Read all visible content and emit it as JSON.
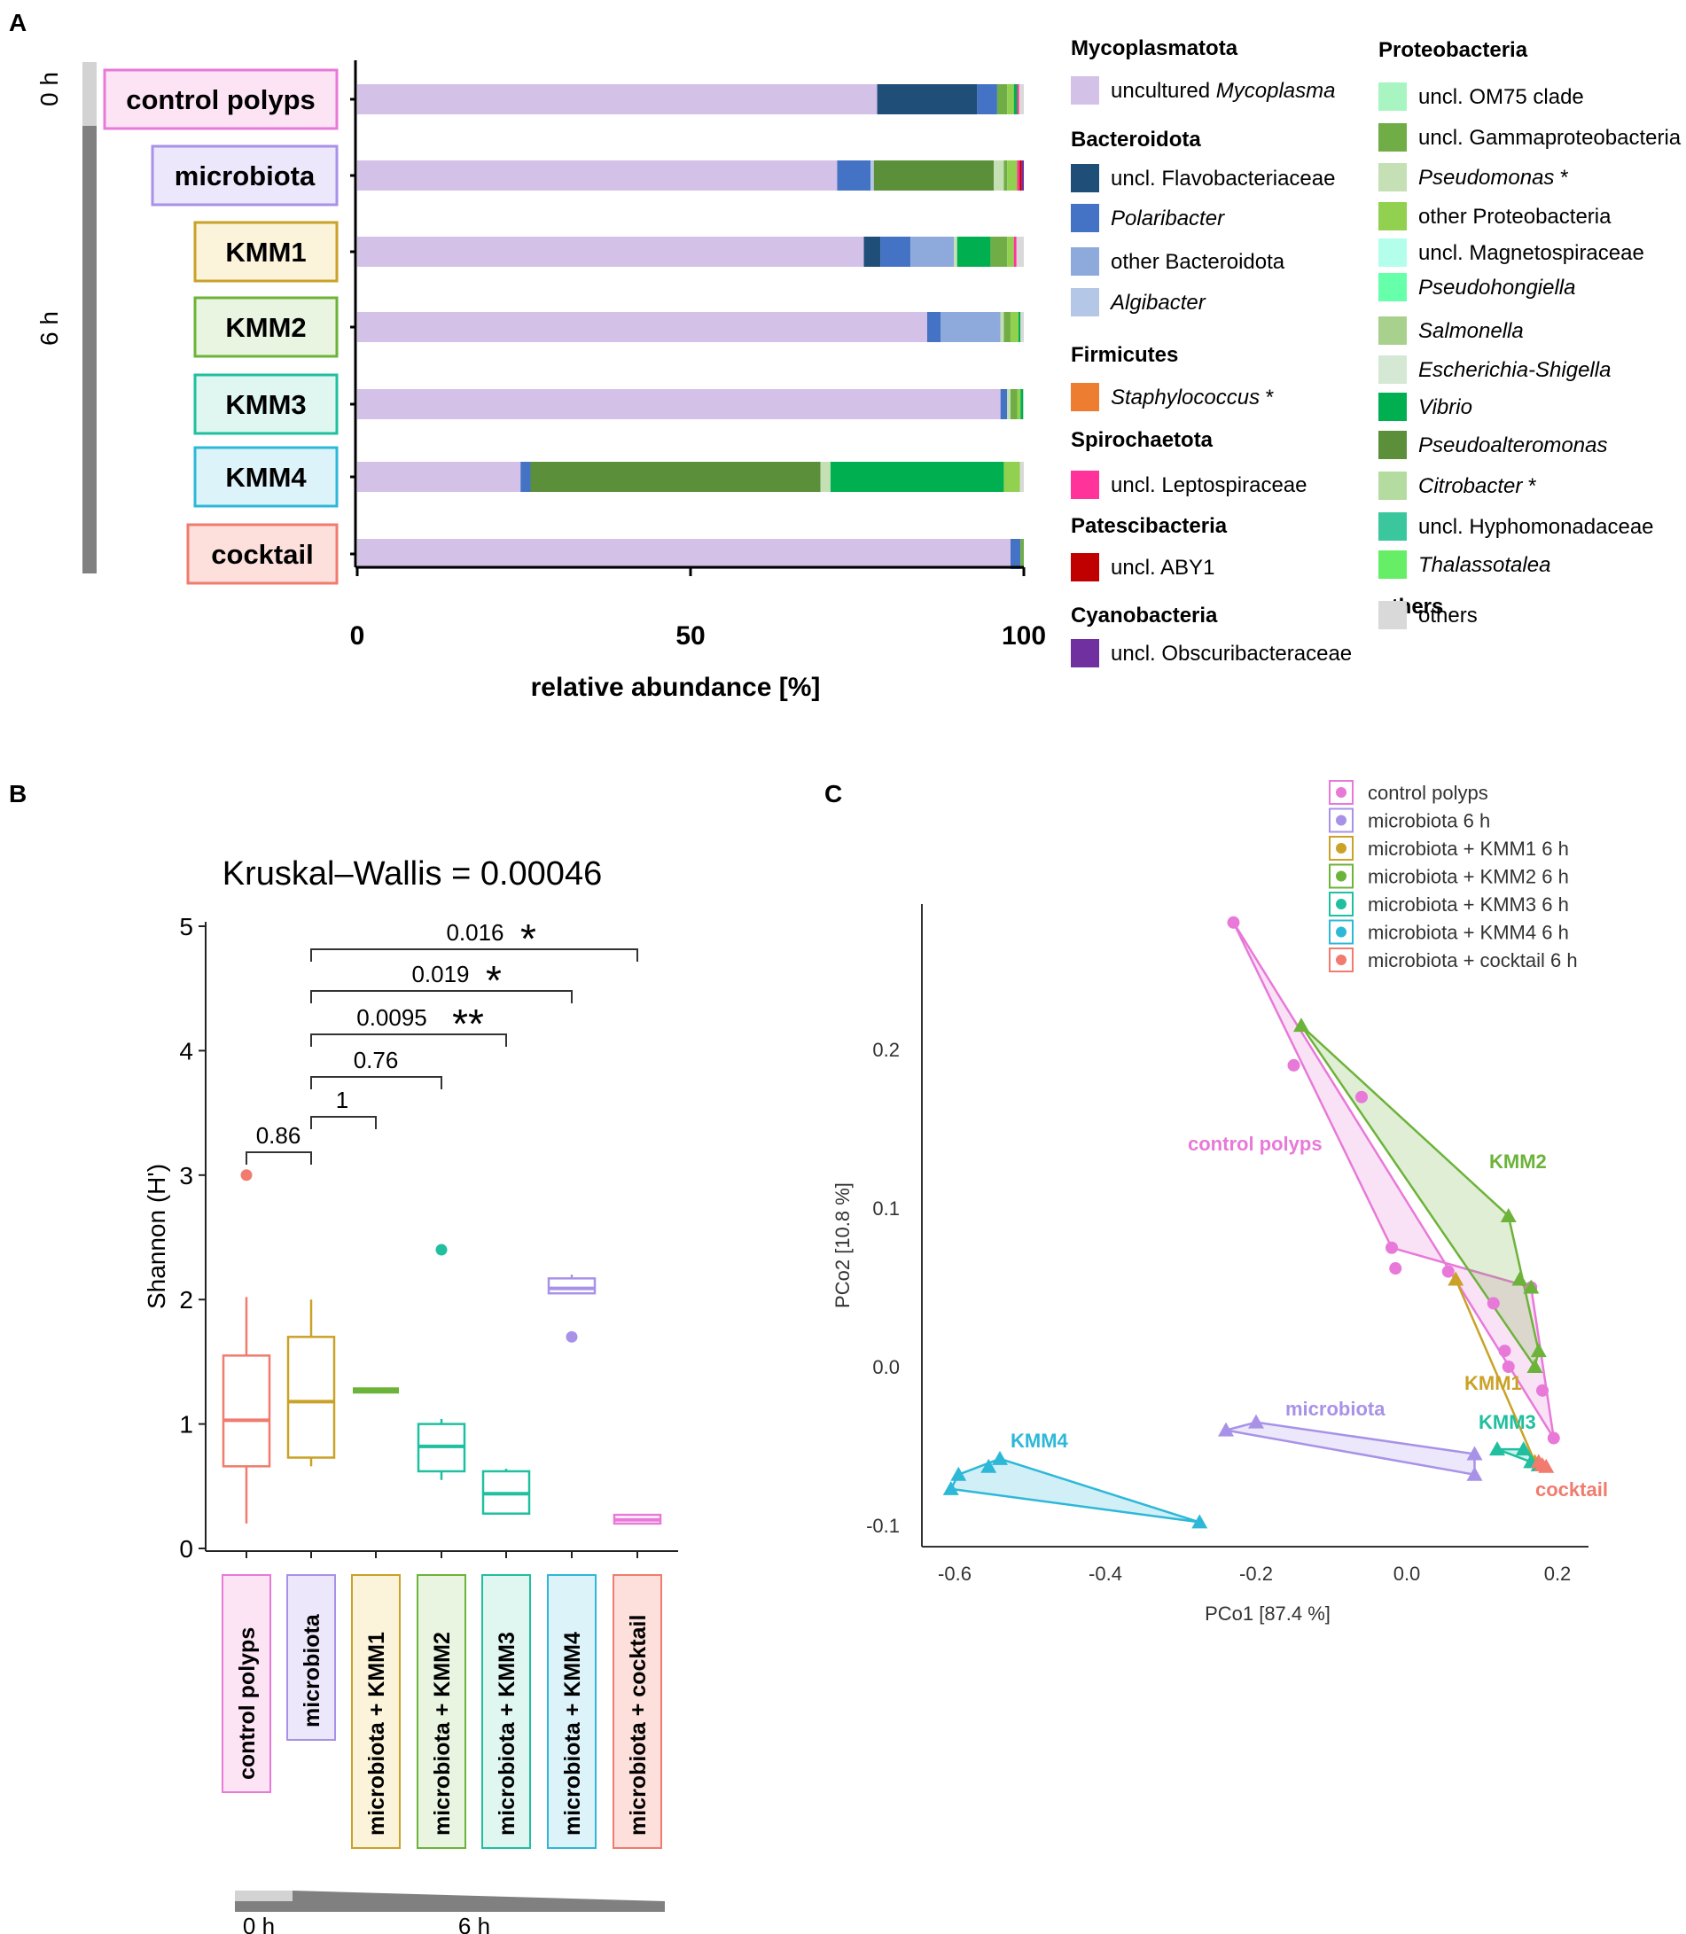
{
  "colors": {
    "uncultured_mycoplasma": "#D4C1E8",
    "flavobacteriaceae": "#1F4E79",
    "polaribacter": "#4472C4",
    "other_bacteroidota": "#8EA9DB",
    "algibacter": "#B4C7E7",
    "staphylococcus": "#ED7D31",
    "leptospiraceae": "#FF3399",
    "aby1": "#C00000",
    "obscuribacteraceae": "#7030A0",
    "om75": "#A9F5C2",
    "gammaproteobacteria": "#70AD47",
    "pseudomonas": "#C5E0B4",
    "other_proteobacteria": "#92D050",
    "magnetospiraceae": "#B3FFEC",
    "pseudohongiella": "#66FFAA",
    "salmonella": "#A9D18E",
    "escherichia": "#D5E8D4",
    "vibrio": "#00B050",
    "pseudoalteromonas": "#5B8F3A",
    "citrobacter": "#B4DCA0",
    "hyphomonadaceae": "#3BC79E",
    "thalassotalea": "#66EE66",
    "others": "#D9D9D9",
    "grp_control": "#E879D8",
    "grp_microbiota": "#A892E8",
    "grp_kmm1": "#C9A227",
    "grp_kmm2": "#6CB33A",
    "grp_kmm3": "#1FBFA0",
    "grp_kmm4": "#2DB8D8",
    "grp_cocktail": "#F07B6E"
  },
  "panel_a": {
    "label": "A",
    "time_0h": "0 h",
    "time_6h": "6 h",
    "groups": [
      "control polyps",
      "microbiota",
      "KMM1",
      "KMM2",
      "KMM3",
      "KMM4",
      "cocktail"
    ],
    "xlabel": "relative abundance [%]",
    "legend": {
      "col1": [
        {
          "title": "Mycoplasmatota",
          "items": [
            {
              "label": "uncultured ",
              "italic": "Mycoplasma",
              "color": "uncultured_mycoplasma"
            }
          ]
        },
        {
          "title": "Bacteroidota",
          "items": [
            {
              "label": "uncl. Flavobacteriaceae",
              "color": "flavobacteriaceae"
            },
            {
              "label": "",
              "italic": "Polaribacter",
              "color": "polaribacter"
            },
            {
              "label": "other Bacteroidota",
              "color": "other_bacteroidota"
            },
            {
              "label": "",
              "italic": "Algibacter",
              "color": "algibacter"
            }
          ]
        },
        {
          "title": "Firmicutes",
          "items": [
            {
              "label": "",
              "italic": "Staphylococcus",
              "suffix": " *",
              "color": "staphylococcus"
            }
          ]
        },
        {
          "title": "Spirochaetota",
          "items": [
            {
              "label": "uncl. Leptospiraceae",
              "color": "leptospiraceae"
            }
          ]
        },
        {
          "title": "Patescibacteria",
          "items": [
            {
              "label": "uncl. ABY1",
              "color": "aby1"
            }
          ]
        },
        {
          "title": "Cyanobacteria",
          "items": [
            {
              "label": "uncl. Obscuribacteraceae",
              "color": "obscuribacteraceae"
            }
          ]
        }
      ],
      "col2": [
        {
          "title": "Proteobacteria",
          "items": [
            {
              "label": "uncl. OM75 clade",
              "color": "om75"
            },
            {
              "label": "uncl. Gammaproteobacteria",
              "color": "gammaproteobacteria"
            },
            {
              "label": "",
              "italic": "Pseudomonas",
              "suffix": " *",
              "color": "pseudomonas"
            },
            {
              "label": "other Proteobacteria",
              "color": "other_proteobacteria"
            },
            {
              "label": "uncl. Magnetospiraceae",
              "color": "magnetospiraceae"
            },
            {
              "label": "",
              "italic": "Pseudohongiella",
              "color": "pseudohongiella"
            },
            {
              "label": "",
              "italic": "Salmonella",
              "color": "salmonella"
            },
            {
              "label": "",
              "italic": "Escherichia-Shigella",
              "color": "escherichia"
            },
            {
              "label": "",
              "italic": "Vibrio",
              "color": "vibrio"
            },
            {
              "label": "",
              "italic": "Pseudoalteromonas",
              "color": "pseudoalteromonas"
            },
            {
              "label": "",
              "italic": "Citrobacter",
              "suffix": " *",
              "color": "citrobacter"
            },
            {
              "label": "uncl. Hyphomonadaceae",
              "color": "hyphomonadaceae"
            },
            {
              "label": "",
              "italic": "Thalassotalea",
              "color": "thalassotalea"
            }
          ]
        },
        {
          "title": "others",
          "items": [
            {
              "label": "others",
              "color": "others"
            }
          ]
        }
      ]
    }
  },
  "panel_b": {
    "label": "B",
    "title": "Kruskal–Wallis = 0.00046",
    "ylabel": "Shannon (H')",
    "groups": [
      "control polyps",
      "microbiota",
      "microbiota + KMM1",
      "microbiota + KMM2",
      "microbiota + KMM3",
      "microbiota + KMM4",
      "microbiota + cocktail"
    ],
    "time_0h": "0 h",
    "time_6h": "6 h",
    "comparisons": [
      {
        "p": "0.86",
        "stars": ""
      },
      {
        "p": "1",
        "stars": ""
      },
      {
        "p": "0.76",
        "stars": ""
      },
      {
        "p": "0.0095",
        "stars": "**"
      },
      {
        "p": "0.019",
        "stars": "*"
      },
      {
        "p": "0.016",
        "stars": "*"
      }
    ]
  },
  "panel_c": {
    "label": "C",
    "xlabel": "PCo1 [87.4 %]",
    "ylabel": "PCo2 [10.8 %]",
    "legend": [
      "control polyps",
      "microbiota 6 h",
      "microbiota + KMM1 6 h",
      "microbiota + KMM2 6 h",
      "microbiota + KMM3 6 h",
      "microbiota + KMM4 6 h",
      "microbiota + cocktail 6 h"
    ],
    "cluster_labels": {
      "control": "control polyps",
      "kmm2": "KMM2",
      "kmm1": "KMM1",
      "microbiota": "microbiota",
      "kmm3": "KMM3",
      "kmm4": "KMM4",
      "cocktail": "cocktail"
    }
  },
  "chart_data": [
    {
      "type": "bar",
      "orientation": "horizontal",
      "stacked": true,
      "title": "",
      "xlabel": "relative abundance [%]",
      "xlim": [
        0,
        100
      ],
      "xticks": [
        0,
        50,
        100
      ],
      "categories": [
        "control polyps",
        "microbiota",
        "KMM1",
        "KMM2",
        "KMM3",
        "KMM4",
        "cocktail"
      ],
      "series": [
        {
          "name": "uncultured Mycoplasma",
          "color": "uncultured_mycoplasma",
          "values": [
            78,
            72,
            76,
            85.5,
            96.5,
            24.5,
            98
          ]
        },
        {
          "name": "uncl. Flavobacteriaceae",
          "color": "flavobacteriaceae",
          "values": [
            15,
            0,
            2.5,
            0,
            0,
            0,
            0
          ]
        },
        {
          "name": "Polaribacter",
          "color": "polaribacter",
          "values": [
            3,
            5,
            4.5,
            2,
            1,
            1.5,
            1.5
          ]
        },
        {
          "name": "other Bacteroidota",
          "color": "other_bacteroidota",
          "values": [
            0,
            0,
            6.5,
            9,
            0,
            0,
            0
          ]
        },
        {
          "name": "Algibacter",
          "color": "algibacter",
          "values": [
            0,
            0.5,
            0,
            0,
            0,
            0,
            0
          ]
        },
        {
          "name": "Pseudoalteromonas",
          "color": "pseudoalteromonas",
          "values": [
            0,
            18,
            0,
            0,
            0,
            43.5,
            0
          ]
        },
        {
          "name": "Pseudomonas",
          "color": "pseudomonas",
          "values": [
            0,
            1.5,
            0.5,
            0.5,
            0.5,
            1.5,
            0
          ]
        },
        {
          "name": "Vibrio",
          "color": "vibrio",
          "values": [
            0,
            0,
            5,
            0,
            0,
            26,
            0
          ]
        },
        {
          "name": "uncl. Gammaproteobacteria",
          "color": "gammaproteobacteria",
          "values": [
            1.5,
            0.5,
            2.5,
            1,
            1,
            0,
            0.5
          ]
        },
        {
          "name": "other Proteobacteria",
          "color": "other_proteobacteria",
          "values": [
            1,
            1.5,
            1,
            1.2,
            0.5,
            2.4,
            0
          ]
        },
        {
          "name": "Vibrio (minor)",
          "color": "vibrio",
          "values": [
            0.5,
            0,
            0,
            0.3,
            0.4,
            0,
            0
          ]
        },
        {
          "name": "uncl. Leptospiraceae",
          "color": "leptospiraceae",
          "values": [
            0.3,
            0.4,
            0.4,
            0,
            0,
            0,
            0
          ]
        },
        {
          "name": "uncl. ABY1",
          "color": "aby1",
          "values": [
            0,
            0.3,
            0,
            0,
            0,
            0,
            0
          ]
        },
        {
          "name": "uncl. Obscuribacteraceae",
          "color": "obscuribacteraceae",
          "values": [
            0,
            0.3,
            0,
            0,
            0,
            0,
            0
          ]
        },
        {
          "name": "others",
          "color": "others",
          "values": [
            0.7,
            0,
            1.1,
            0.5,
            0.1,
            0.6,
            0
          ]
        }
      ]
    },
    {
      "type": "box",
      "title": "Kruskal–Wallis = 0.00046",
      "ylabel": "Shannon (H')",
      "ylim": [
        0,
        5
      ],
      "yticks": [
        0,
        1,
        2,
        3,
        4,
        5
      ],
      "categories": [
        "control polyps",
        "microbiota",
        "microbiota + KMM1",
        "microbiota + KMM2",
        "microbiota + KMM3",
        "microbiota + KMM4",
        "microbiota + cocktail"
      ],
      "colors": [
        "grp_cocktail",
        "grp_kmm1",
        "grp_kmm2",
        "grp_kmm3",
        "grp_kmm3",
        "grp_microbiota",
        "grp_control"
      ],
      "boxes": [
        {
          "min": 0.2,
          "q1": 0.66,
          "median": 1.03,
          "q3": 1.55,
          "max": 2.02,
          "outliers": [
            3.0
          ]
        },
        {
          "min": 0.66,
          "q1": 0.73,
          "median": 1.18,
          "q3": 1.7,
          "max": 2.0,
          "outliers": []
        },
        {
          "min": 1.27,
          "q1": 1.27,
          "median": 1.27,
          "q3": 1.27,
          "max": 1.27,
          "outliers": []
        },
        {
          "min": 0.55,
          "q1": 0.62,
          "median": 0.82,
          "q3": 1.0,
          "max": 1.04,
          "outliers": [
            2.4
          ]
        },
        {
          "min": 0.28,
          "q1": 0.28,
          "median": 0.44,
          "q3": 0.62,
          "max": 0.64,
          "outliers": []
        },
        {
          "min": 2.05,
          "q1": 2.05,
          "median": 2.09,
          "q3": 2.17,
          "max": 2.2,
          "outliers": [
            1.7
          ]
        },
        {
          "min": 0.2,
          "q1": 0.2,
          "median": 0.23,
          "q3": 0.27,
          "max": 0.27,
          "outliers": []
        }
      ],
      "comparisons": [
        {
          "from": 1,
          "to": 0,
          "p": "0.86"
        },
        {
          "from": 1,
          "to": 2,
          "p": "1"
        },
        {
          "from": 1,
          "to": 3,
          "p": "0.76"
        },
        {
          "from": 1,
          "to": 4,
          "p": "0.0095",
          "stars": "**"
        },
        {
          "from": 1,
          "to": 5,
          "p": "0.019",
          "stars": "*"
        },
        {
          "from": 1,
          "to": 6,
          "p": "0.016",
          "stars": "*"
        }
      ]
    },
    {
      "type": "scatter",
      "xlabel": "PCo1 [87.4 %]",
      "ylabel": "PCo2 [10.8 %]",
      "xlim": [
        -0.63,
        0.24
      ],
      "ylim": [
        -0.115,
        0.3
      ],
      "xticks": [
        -0.6,
        -0.4,
        -0.2,
        0.0,
        0.2
      ],
      "yticks": [
        -0.1,
        0.0,
        0.1,
        0.2
      ],
      "series": [
        {
          "name": "control polyps",
          "color": "grp_control",
          "marker": "circle",
          "points": [
            [
              -0.23,
              0.28
            ],
            [
              -0.15,
              0.19
            ],
            [
              -0.06,
              0.17
            ],
            [
              -0.02,
              0.075
            ],
            [
              -0.015,
              0.062
            ],
            [
              0.055,
              0.06
            ],
            [
              0.115,
              0.04
            ],
            [
              0.13,
              0.01
            ],
            [
              0.135,
              0.0
            ],
            [
              0.165,
              0.05
            ],
            [
              0.18,
              -0.015
            ],
            [
              0.195,
              -0.045
            ]
          ],
          "hull": [
            [
              -0.23,
              0.28
            ],
            [
              0.195,
              -0.045
            ],
            [
              0.165,
              0.05
            ],
            [
              -0.02,
              0.075
            ]
          ]
        },
        {
          "name": "microbiota 6 h",
          "color": "grp_microbiota",
          "marker": "triangle",
          "points": [
            [
              -0.24,
              -0.04
            ],
            [
              -0.2,
              -0.035
            ],
            [
              0.09,
              -0.055
            ],
            [
              0.09,
              -0.068
            ]
          ],
          "hull": [
            [
              -0.24,
              -0.04
            ],
            [
              -0.2,
              -0.035
            ],
            [
              0.09,
              -0.055
            ],
            [
              0.09,
              -0.068
            ]
          ]
        },
        {
          "name": "microbiota + KMM1 6 h",
          "color": "grp_kmm1",
          "marker": "triangle",
          "points": [
            [
              0.065,
              0.055
            ],
            [
              0.17,
              -0.06
            ]
          ],
          "hull": [
            [
              0.065,
              0.055
            ],
            [
              0.17,
              -0.06
            ]
          ]
        },
        {
          "name": "microbiota + KMM2 6 h",
          "color": "grp_kmm2",
          "marker": "triangle",
          "points": [
            [
              -0.14,
              0.215
            ],
            [
              0.135,
              0.095
            ],
            [
              0.15,
              0.055
            ],
            [
              0.165,
              0.05
            ],
            [
              0.175,
              0.01
            ],
            [
              0.17,
              0.0
            ]
          ],
          "hull": [
            [
              -0.14,
              0.215
            ],
            [
              0.135,
              0.095
            ],
            [
              0.175,
              0.01
            ],
            [
              0.17,
              0.0
            ]
          ]
        },
        {
          "name": "microbiota + KMM3 6 h",
          "color": "grp_kmm3",
          "marker": "triangle",
          "points": [
            [
              0.12,
              -0.052
            ],
            [
              0.155,
              -0.052
            ],
            [
              0.165,
              -0.06
            ],
            [
              0.175,
              -0.062
            ]
          ],
          "hull": [
            [
              0.12,
              -0.052
            ],
            [
              0.155,
              -0.052
            ],
            [
              0.175,
              -0.062
            ],
            [
              0.165,
              -0.06
            ]
          ]
        },
        {
          "name": "microbiota + KMM4 6 h",
          "color": "grp_kmm4",
          "marker": "triangle",
          "points": [
            [
              -0.595,
              -0.068
            ],
            [
              -0.555,
              -0.063
            ],
            [
              -0.54,
              -0.058
            ],
            [
              -0.605,
              -0.077
            ],
            [
              -0.275,
              -0.098
            ]
          ],
          "hull": [
            [
              -0.595,
              -0.068
            ],
            [
              -0.54,
              -0.058
            ],
            [
              -0.275,
              -0.098
            ],
            [
              -0.605,
              -0.077
            ]
          ]
        },
        {
          "name": "microbiota + cocktail 6 h",
          "color": "grp_cocktail",
          "marker": "triangle",
          "points": [
            [
              0.175,
              -0.06
            ],
            [
              0.18,
              -0.062
            ],
            [
              0.185,
              -0.063
            ]
          ],
          "hull": [
            [
              0.175,
              -0.06
            ],
            [
              0.18,
              -0.062
            ],
            [
              0.185,
              -0.063
            ]
          ]
        }
      ]
    }
  ]
}
